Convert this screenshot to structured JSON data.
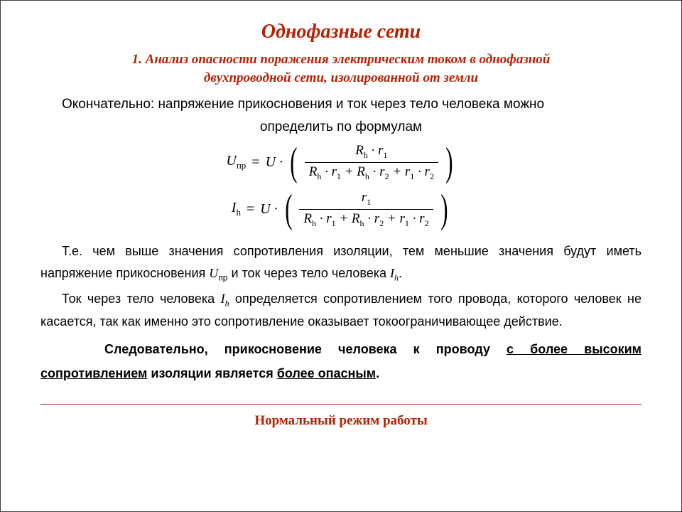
{
  "colors": {
    "accent": "#b22206",
    "text": "#000000",
    "rule": "#b04040",
    "background": "#ffffff",
    "border": "#404040"
  },
  "typography": {
    "title_family": "Times New Roman",
    "title_size_pt": 21,
    "body_family": "Arial",
    "body_size_pt": 13.5
  },
  "title": "Однофазные сети",
  "subtitle_line1": "1. Анализ опасности поражения электрическим током в однофазной",
  "subtitle_line2": "двухпроводной сети, изолированной от земли",
  "intro1": "Окончательно: напряжение прикосновения и ток через тело человека можно",
  "intro2": "определить по формулам",
  "formulas": {
    "f1": {
      "lhs_var": "U",
      "lhs_sub": "пр",
      "rhs_prefix_var": "U",
      "num": "R_h · r_1",
      "den": "R_h · r_1 + R_h · r_2 + r_1 · r_2"
    },
    "f2": {
      "lhs_var": "I",
      "lhs_sub": "h",
      "rhs_prefix_var": "U",
      "num": "r_1",
      "den": "R_h · r_1 + R_h · r_2 + r_1 · r_2"
    }
  },
  "para1_a": "Т.е. чем выше значения сопротивления изоляции, тем меньшие значения будут иметь напряжение прикосновения ",
  "para1_sym1": "U",
  "para1_sub1": "пр",
  "para1_b": " и ток через тело человека ",
  "para1_sym2": "I",
  "para1_sub2": "h",
  "para1_c": ".",
  "para2_a": "Ток через тело человека ",
  "para2_sym": "I",
  "para2_sub": "h",
  "para2_b": " определяется сопротивлением того провода, которого человек не касается, так как именно это сопротивление оказывает токоограничивающее действие.",
  "conclusion_a": "Следовательно, прикосновение человека к проводу ",
  "conclusion_u1": "с более высоким сопротивлением",
  "conclusion_b": " изоляции является ",
  "conclusion_u2": "более опасным",
  "conclusion_c": ".",
  "footer": "Нормальный режим работы"
}
